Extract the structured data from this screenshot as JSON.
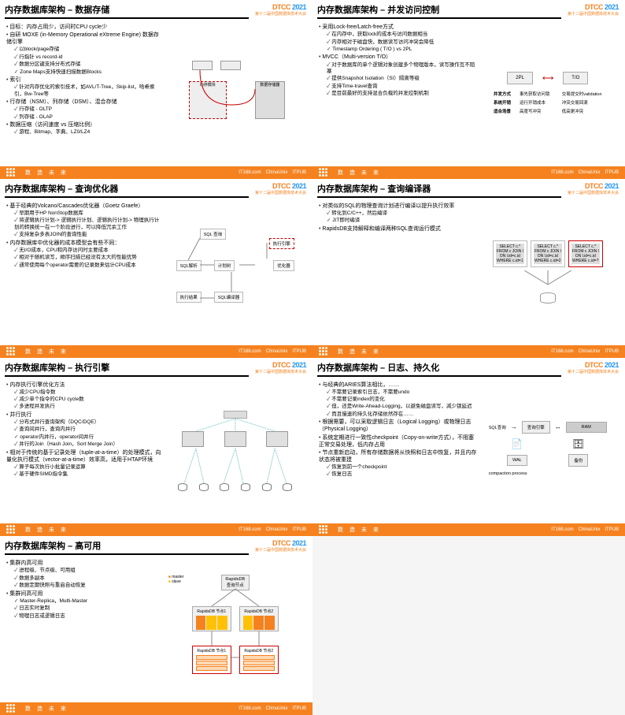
{
  "conference": {
    "logo": "DTCC",
    "year": "2021",
    "subtitle": "第十二届中国数据库技术大会"
  },
  "footer": {
    "slogan": "数 造 未 来",
    "sponsors": [
      "IT168.com",
      "ChinaUnix",
      "ITPUB"
    ]
  },
  "colors": {
    "brand": "#f5821f",
    "accent": "#2196f3",
    "diagram_line": "#c00000",
    "box_border": "#aaaaaa",
    "box_fill": "#eeeeee"
  },
  "slides": [
    {
      "title": "内存数据库架构 – 数据存储",
      "bullets": [
        {
          "t": "目标：内存占用少，访问时CPU cycle少"
        },
        {
          "t": "自研 MOXE (in-Memory Operational eXtreme Engine) 数据存储引擎"
        },
        {
          "t": "以block/page存储",
          "lvl": 1,
          "c": true
        },
        {
          "t": "行指针 vs record-id",
          "lvl": 1,
          "c": true
        },
        {
          "t": "数据分区键支持分布式存储",
          "lvl": 1,
          "c": true
        },
        {
          "t": "Zone Maps支持快速扫描数据Blocks",
          "lvl": 1,
          "c": true
        },
        {
          "t": "索引"
        },
        {
          "t": "针对内存优化的索引技术，如AVL/T-Tree，Skip-list，哈希索引，Bw-Tree等",
          "lvl": 1,
          "c": true
        },
        {
          "t": "行存储（NSM）、列存储（DSM）、混合存储"
        },
        {
          "t": "行存储 - OLTP",
          "lvl": 1,
          "c": true
        },
        {
          "t": "列存储 - OLAP",
          "lvl": 1,
          "c": true
        },
        {
          "t": "数据压缩（访问速度 vs 压缩比例）"
        },
        {
          "t": "游程、Bitmap、字典、LZ0/LZ4",
          "lvl": 1,
          "c": true
        }
      ],
      "diagram": {
        "labels": [
          "内存模块",
          "数据存储器"
        ]
      }
    },
    {
      "title": "内存数据库架构 – 并发访问控制",
      "bullets": [
        {
          "t": "采用Lock-free/Latch-free方式"
        },
        {
          "t": "在内存中，获取lock的成本与访问数据相当",
          "lvl": 1,
          "c": true
        },
        {
          "t": "内存相对于磁盘快，数据读写访问冲突会降低",
          "lvl": 1,
          "c": true
        },
        {
          "t": "Timestamp Ordering ( T/O ) vs 2PL",
          "lvl": 1,
          "c": true
        },
        {
          "t": "MVCC（Multi-version T/O）"
        },
        {
          "t": "对于数据库的单个逻辑对象创建多个物理版本，读写操作互不阻塞",
          "lvl": 1,
          "c": true
        },
        {
          "t": "提供Snapshot Isolation（SI）隔离等级",
          "lvl": 1,
          "c": true
        },
        {
          "t": "支持Time-travel查询",
          "lvl": 1,
          "c": true
        },
        {
          "t": "是目前最好的支持混合负载的并发控制机制",
          "lvl": 1,
          "c": true
        }
      ],
      "diagram": {
        "left": "2PL",
        "right": "T/O",
        "rows": [
          [
            "并发方式",
            "事先获取访问锁",
            "交易提交时validation"
          ],
          [
            "系统开销",
            "运行开销成本",
            "冲突交易回滚"
          ],
          [
            "适合场景",
            "高度写冲突",
            "低高更冲突"
          ]
        ]
      }
    },
    {
      "title": "内存数据库架构 – 查询优化器",
      "bullets": [
        {
          "t": "基于经典的Volcano/Cascades优化器（Goetz Graefe）"
        },
        {
          "t": "早期用于HP NonStop数据库",
          "lvl": 1,
          "c": true
        },
        {
          "t": "将逻辑执行计划-> 逻辑执行计划、逻辑执行计划-> 物理执行计划的转换统一在一个阶段进行，可以降低冗余工作",
          "lvl": 1,
          "c": true
        },
        {
          "t": "支持复杂多表JOIN的查询性能",
          "lvl": 1,
          "c": true
        },
        {
          "t": "内存数据库中优化器的成本模型会有些不同："
        },
        {
          "t": "无I/O成本，CPU和内存访问时主要成本",
          "lvl": 1,
          "c": true
        },
        {
          "t": "相对于随机读写，顺序扫描已经没有太大的性能优势",
          "lvl": 1,
          "c": true
        },
        {
          "t": "通常使用每个operator需要的记录数来估计CPU成本",
          "lvl": 1,
          "c": true
        }
      ],
      "diagram": {
        "labels": [
          "SQL 查询",
          "SQL解析",
          "计划树",
          "优化器",
          "执行引擎",
          "SQL编译器",
          "执行结果"
        ]
      }
    },
    {
      "title": "内存数据库架构 – 查询编译器",
      "bullets": [
        {
          "t": "对类似的SQL的物理查询计划进行编译以提升执行效率"
        },
        {
          "t": "转化到C/C++，然后编译",
          "lvl": 1,
          "c": true
        },
        {
          "t": "JIT即时编译",
          "lvl": 1,
          "c": true
        },
        {
          "t": "RapidsDB支持解释和编译两种SQL查询运行模式"
        }
      ],
      "diagram": {
        "plans": [
          "SELECT c.*\nFROM c JOIN l\nON l.id=c.id\nWHERE c.id=1",
          "SELECT c.*\nFROM c JOIN l\nON l.id=c.id\nWHERE c.id=2",
          "SELECT c.*\nFROM c JOIN l\nON l.id=c.id\nWHERE c.id=?"
        ]
      }
    },
    {
      "title": "内存数据库架构 – 执行引擎",
      "bullets": [
        {
          "t": "内存执行引擎优化方法"
        },
        {
          "t": "减少CPU指令数",
          "lvl": 1,
          "c": true
        },
        {
          "t": "减少单个指令的CPU cycle数",
          "lvl": 1,
          "c": true
        },
        {
          "t": "多进程并发执行",
          "lvl": 1,
          "c": true
        },
        {
          "t": "并行执行"
        },
        {
          "t": "分布式并行查询架构（DQC/DQE）",
          "lvl": 1,
          "c": true
        },
        {
          "t": "查询间并行，查询内并行",
          "lvl": 1,
          "c": true
        },
        {
          "t": "operator内并行，operator间并行",
          "lvl": 1,
          "c": true
        },
        {
          "t": "并行的Join（Hash Join，Sort Merge Join）",
          "lvl": 1,
          "c": true
        },
        {
          "t": "相对于传统的基于记录处理（tuple-at-a-time）的处理模式，向量化执行模式（vector-at-a-time）效率高，适用于HTAP环境"
        },
        {
          "t": "算子每次执行小批量记录运算",
          "lvl": 1,
          "c": true
        },
        {
          "t": "基于硬件SIMD指令集",
          "lvl": 1,
          "c": true
        }
      ]
    },
    {
      "title": "内存数据库架构 – 日志、持久化",
      "bullets": [
        {
          "t": "与经典的ARIES算法相比，……"
        },
        {
          "t": "不需要记录索引日志，不需要undo",
          "lvl": 1,
          "c": true
        },
        {
          "t": "不需要记录index的变化",
          "lvl": 1,
          "c": true
        },
        {
          "t": "但，还是Write-Ahead-Logging，以避免磁盘读写，减少锁延迟",
          "lvl": 1,
          "c": true
        },
        {
          "t": "而且慢速的持久化存储依然存在……",
          "lvl": 1,
          "c": true
        },
        {
          "t": "根据需要，可以采取逻辑日志（Logical Logging）或物理日志（Physical Logging）"
        },
        {
          "t": "系统定期进行一致性checkpoint（Copy-on-write方式），不阻塞正常交易处理，低内存占用"
        },
        {
          "t": "节点重新启动，所有存储数据将从快照和日志中恢复，并且内存状态将被重建"
        },
        {
          "t": "恢复到前一个checkpoint",
          "lvl": 1,
          "c": true
        },
        {
          "t": "恢复日志",
          "lvl": 1,
          "c": true
        }
      ],
      "diagram": {
        "labels": [
          "SQL查询",
          "查询引擎",
          "RAM",
          "WAL",
          "备份",
          "compaction process"
        ]
      }
    },
    {
      "title": "内存数据库架构 – 高可用",
      "bullets": [
        {
          "t": "集群内高可用"
        },
        {
          "t": "进程级、节点级、可用组",
          "lvl": 1,
          "c": true
        },
        {
          "t": "数据多副本",
          "lvl": 1,
          "c": true
        },
        {
          "t": "数据定期快照与重启自动恢复",
          "lvl": 1,
          "c": true
        },
        {
          "t": "集群间高可用"
        },
        {
          "t": "Master-Replica，Multi-Master",
          "lvl": 1,
          "c": true
        },
        {
          "t": "日志实时复制",
          "lvl": 1,
          "c": true
        },
        {
          "t": "物理日志或逻辑日志",
          "lvl": 1,
          "c": true
        }
      ],
      "diagram": {
        "master": "RapidsDB\n查询节点",
        "legend": [
          "master",
          "slave"
        ],
        "nodes": [
          "RapidsDB\n节点1",
          "RapidsDB\n节点2",
          "RapidsDB\n节点1",
          "RapidsDB\n节点2"
        ],
        "parts": [
          "分区数据",
          "分区数据",
          "分区数据"
        ]
      }
    }
  ]
}
